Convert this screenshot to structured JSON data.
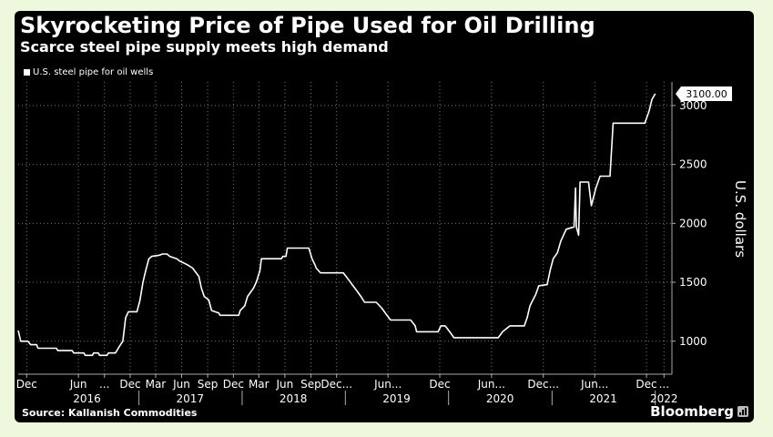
{
  "chart_data": {
    "type": "line",
    "title": "Skyrocketing Price of Pipe Used for Oil Drilling",
    "subtitle": "Scarce steel pipe supply meets high demand",
    "ylabel": "U.S. dollars",
    "xlabel": "",
    "ylim": [
      720,
      3200
    ],
    "yticks": [
      1000,
      1500,
      2000,
      2500,
      3000
    ],
    "ytick_labels": [
      "1000",
      "1500",
      "2000",
      "2500",
      "3000"
    ],
    "x_start": "2015-11",
    "x_end": "2022-03",
    "xticks": [
      {
        "label": "Dec",
        "date": "2015-12"
      },
      {
        "label": "Jun",
        "date": "2016-06"
      },
      {
        "label": "...",
        "date": "2016-09"
      },
      {
        "label": "Dec",
        "date": "2016-12"
      },
      {
        "label": "Mar",
        "date": "2017-03"
      },
      {
        "label": "Jun",
        "date": "2017-06"
      },
      {
        "label": "Sep",
        "date": "2017-09"
      },
      {
        "label": "Dec",
        "date": "2017-12"
      },
      {
        "label": "Mar",
        "date": "2018-03"
      },
      {
        "label": "Jun",
        "date": "2018-06"
      },
      {
        "label": "Sep",
        "date": "2018-09"
      },
      {
        "label": "Dec...",
        "date": "2018-12"
      },
      {
        "label": "Jun...",
        "date": "2019-06"
      },
      {
        "label": "Dec",
        "date": "2019-12"
      },
      {
        "label": "Jun...",
        "date": "2020-06"
      },
      {
        "label": "Dec...",
        "date": "2020-12"
      },
      {
        "label": "Jun...",
        "date": "2021-06"
      },
      {
        "label": "Dec",
        "date": "2021-12"
      },
      {
        "label": "...",
        "date": "2022-02"
      }
    ],
    "years": [
      {
        "label": "2016",
        "date": "2016-07"
      },
      {
        "label": "2017",
        "date": "2017-07"
      },
      {
        "label": "2018",
        "date": "2018-07"
      },
      {
        "label": "2019",
        "date": "2019-07"
      },
      {
        "label": "2020",
        "date": "2020-07"
      },
      {
        "label": "2021",
        "date": "2021-07"
      },
      {
        "label": "2022",
        "date": "2022-02"
      }
    ],
    "year_dividers": [
      "2017-01",
      "2018-01",
      "2019-01",
      "2020-01",
      "2021-01",
      "2022-01"
    ],
    "grid": true,
    "legend_position": "top-left",
    "last_value_label": "3100.00",
    "series": [
      {
        "name": "U.S. steel pipe for oil wells",
        "color": "#ffffff",
        "points": [
          [
            "2015-11-01",
            1090
          ],
          [
            "2015-11-10",
            1000
          ],
          [
            "2015-12-05",
            1000
          ],
          [
            "2015-12-15",
            970
          ],
          [
            "2016-01-05",
            970
          ],
          [
            "2016-01-10",
            940
          ],
          [
            "2016-03-15",
            940
          ],
          [
            "2016-03-20",
            920
          ],
          [
            "2016-05-10",
            920
          ],
          [
            "2016-05-15",
            900
          ],
          [
            "2016-06-20",
            900
          ],
          [
            "2016-06-25",
            880
          ],
          [
            "2016-07-20",
            880
          ],
          [
            "2016-07-25",
            900
          ],
          [
            "2016-08-10",
            900
          ],
          [
            "2016-08-15",
            880
          ],
          [
            "2016-09-10",
            880
          ],
          [
            "2016-09-15",
            900
          ],
          [
            "2016-10-10",
            900
          ],
          [
            "2016-10-15",
            920
          ],
          [
            "2016-10-25",
            960
          ],
          [
            "2016-11-05",
            1000
          ],
          [
            "2016-11-15",
            1200
          ],
          [
            "2016-11-25",
            1250
          ],
          [
            "2016-12-25",
            1250
          ],
          [
            "2017-01-05",
            1350
          ],
          [
            "2017-01-15",
            1500
          ],
          [
            "2017-01-25",
            1600
          ],
          [
            "2017-02-05",
            1700
          ],
          [
            "2017-02-15",
            1720
          ],
          [
            "2017-03-15",
            1730
          ],
          [
            "2017-03-25",
            1740
          ],
          [
            "2017-04-10",
            1740
          ],
          [
            "2017-04-20",
            1720
          ],
          [
            "2017-05-15",
            1700
          ],
          [
            "2017-05-25",
            1680
          ],
          [
            "2017-06-20",
            1650
          ],
          [
            "2017-07-10",
            1620
          ],
          [
            "2017-08-01",
            1550
          ],
          [
            "2017-08-10",
            1450
          ],
          [
            "2017-08-20",
            1380
          ],
          [
            "2017-09-05",
            1350
          ],
          [
            "2017-09-15",
            1260
          ],
          [
            "2017-10-10",
            1240
          ],
          [
            "2017-10-15",
            1220
          ],
          [
            "2017-12-20",
            1220
          ],
          [
            "2017-12-25",
            1260
          ],
          [
            "2018-01-10",
            1300
          ],
          [
            "2018-01-20",
            1380
          ],
          [
            "2018-02-10",
            1450
          ],
          [
            "2018-02-20",
            1500
          ],
          [
            "2018-03-05",
            1600
          ],
          [
            "2018-03-10",
            1700
          ],
          [
            "2018-05-20",
            1700
          ],
          [
            "2018-05-25",
            1720
          ],
          [
            "2018-06-05",
            1720
          ],
          [
            "2018-06-10",
            1790
          ],
          [
            "2018-08-25",
            1790
          ],
          [
            "2018-09-05",
            1700
          ],
          [
            "2018-09-15",
            1650
          ],
          [
            "2018-09-20",
            1620
          ],
          [
            "2018-10-05",
            1580
          ],
          [
            "2018-12-25",
            1580
          ],
          [
            "2019-01-10",
            1530
          ],
          [
            "2019-01-25",
            1480
          ],
          [
            "2019-02-10",
            1430
          ],
          [
            "2019-02-25",
            1380
          ],
          [
            "2019-03-10",
            1330
          ],
          [
            "2019-04-20",
            1330
          ],
          [
            "2019-05-10",
            1280
          ],
          [
            "2019-05-25",
            1230
          ],
          [
            "2019-06-10",
            1180
          ],
          [
            "2019-08-20",
            1180
          ],
          [
            "2019-09-05",
            1130
          ],
          [
            "2019-09-10",
            1080
          ],
          [
            "2019-11-25",
            1080
          ],
          [
            "2019-12-05",
            1130
          ],
          [
            "2019-12-20",
            1130
          ],
          [
            "2020-01-05",
            1080
          ],
          [
            "2020-01-20",
            1030
          ],
          [
            "2020-06-25",
            1030
          ],
          [
            "2020-07-10",
            1080
          ],
          [
            "2020-08-05",
            1130
          ],
          [
            "2020-09-25",
            1130
          ],
          [
            "2020-10-05",
            1200
          ],
          [
            "2020-10-15",
            1300
          ],
          [
            "2020-11-05",
            1400
          ],
          [
            "2020-11-15",
            1470
          ],
          [
            "2020-12-15",
            1480
          ],
          [
            "2020-12-25",
            1600
          ],
          [
            "2021-01-05",
            1700
          ],
          [
            "2021-01-20",
            1750
          ],
          [
            "2021-02-01",
            1850
          ],
          [
            "2021-02-20",
            1950
          ],
          [
            "2021-03-20",
            1970
          ],
          [
            "2021-03-25",
            2300
          ],
          [
            "2021-03-28",
            1970
          ],
          [
            "2021-04-05",
            1900
          ],
          [
            "2021-04-10",
            2350
          ],
          [
            "2021-05-10",
            2350
          ],
          [
            "2021-05-20",
            2150
          ],
          [
            "2021-06-05",
            2300
          ],
          [
            "2021-06-20",
            2400
          ],
          [
            "2021-07-25",
            2400
          ],
          [
            "2021-08-05",
            2850
          ],
          [
            "2021-11-25",
            2850
          ],
          [
            "2021-12-10",
            2950
          ],
          [
            "2021-12-20",
            3050
          ],
          [
            "2022-01-01",
            3100
          ]
        ]
      }
    ]
  },
  "footer": {
    "source": "Source: Kallanish Commodities",
    "brand": "Bloomberg"
  }
}
